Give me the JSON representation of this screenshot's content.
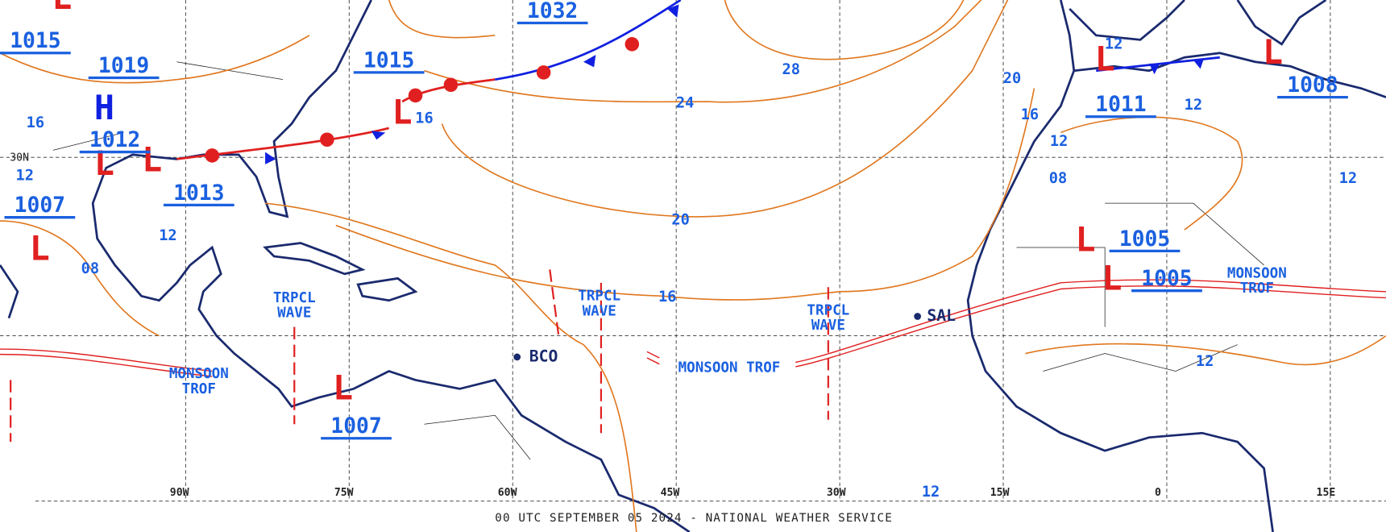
{
  "footer": "00 UTC SEPTEMBER 05 2024 - NATIONAL WEATHER SERVICE",
  "longitude_labels": [
    "90W",
    "75W",
    "60W",
    "45W",
    "30W",
    "15W",
    "0",
    "15E"
  ],
  "latitude_labels": [
    "30N"
  ],
  "pressure_letters": [
    "H",
    "L",
    "L",
    "L",
    "L",
    "L",
    "L",
    "L",
    "L",
    "L",
    "L"
  ],
  "pressure_values": [
    "1032",
    "1015",
    "1019",
    "1015",
    "1012",
    "1013",
    "1007",
    "1007",
    "1011",
    "1008",
    "1005",
    "1005"
  ],
  "isobar_labels": [
    "28",
    "24",
    "20",
    "16",
    "20",
    "16",
    "12",
    "12",
    "12",
    "12",
    "12",
    "16",
    "12",
    "12",
    "08",
    "16",
    "08",
    "12"
  ],
  "features": [
    "TRPCL WAVE",
    "TRPCL WAVE",
    "TRPCL WAVE",
    "MONSOON TROF",
    "MONSOON TROF",
    "MONSOON TROF"
  ],
  "stations": [
    "BCO",
    "SAL"
  ]
}
